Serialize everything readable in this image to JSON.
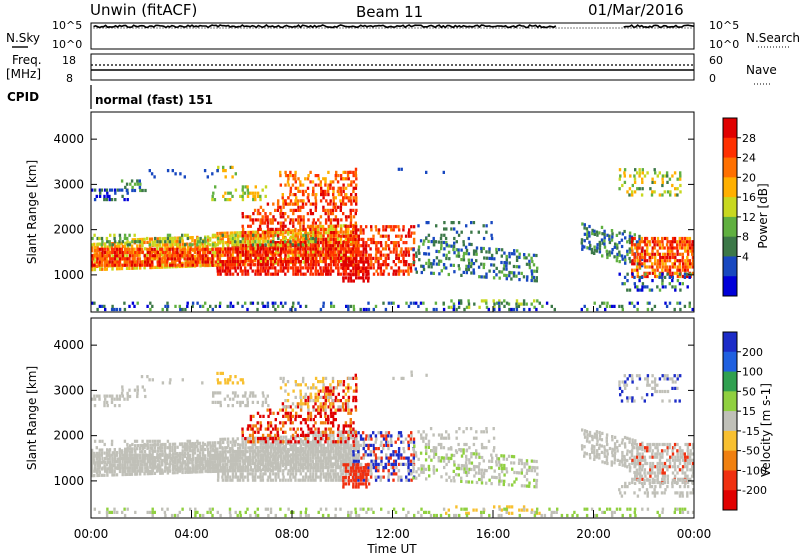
{
  "header": {
    "title": "Unwin (fitACF)",
    "beam": "Beam 11",
    "date": "01/Mar/2016"
  },
  "top_panels": {
    "nsky_label": "N.Sky",
    "nsky_ticks": [
      "10^5",
      "10^0"
    ],
    "nsearch_label": "N.Search",
    "nsearch_ticks": [
      "10^5",
      "10^0"
    ],
    "freq_label": "Freq.",
    "freq_unit": "[MHz]",
    "freq_ticks": [
      "18",
      "8"
    ],
    "nave_label": "Nave",
    "nave_ticks": [
      "60",
      "0"
    ],
    "cpid_label": "CPID",
    "cpid_value": "normal (fast) 151"
  },
  "chart_data": [
    {
      "type": "heatmap",
      "parameter": "power",
      "xlabel": "",
      "ylabel": "Slant Range [km]",
      "ylim": [
        180,
        4600
      ],
      "yticks": [
        1000,
        2000,
        3000,
        4000
      ],
      "colorbar_label": "Power [dB]",
      "colorbar_ticks": [
        "28",
        "24",
        "20",
        "16",
        "12",
        "8",
        "4"
      ],
      "colorbar_colors": [
        "#e00000",
        "#ff3000",
        "#ff7000",
        "#ffb000",
        "#c8d820",
        "#60b040",
        "#3c7848",
        "#1848c0",
        "#0000d8"
      ]
    },
    {
      "type": "heatmap",
      "parameter": "velocity",
      "xlabel": "Time UT",
      "ylabel": "Slant Range [km]",
      "ylim": [
        180,
        4600
      ],
      "yticks": [
        1000,
        2000,
        3000,
        4000
      ],
      "xticks": [
        "00:00",
        "04:00",
        "08:00",
        "12:00",
        "16:00",
        "20:00",
        "00:00"
      ],
      "colorbar_label": "Velocity [m s-1]",
      "colorbar_ticks": [
        "200",
        "100",
        "50",
        "15",
        "-15",
        "-50",
        "-100",
        "-200"
      ],
      "colorbar_colors": [
        "#1c2cc8",
        "#2060e0",
        "#30a050",
        "#90d040",
        "#c0c0b8",
        "#f8c030",
        "#f08010",
        "#f03010",
        "#e00000"
      ]
    }
  ]
}
